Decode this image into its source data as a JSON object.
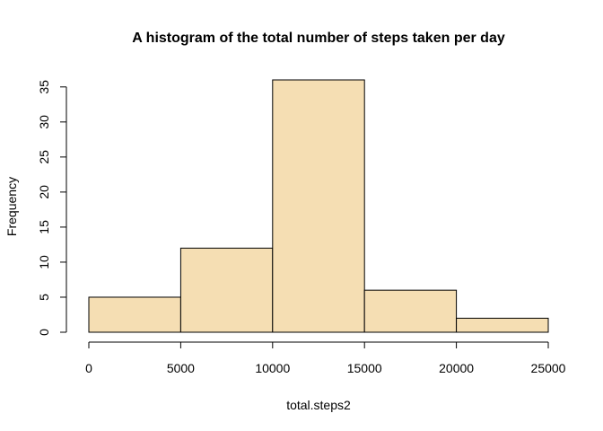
{
  "chart_data": {
    "type": "bar",
    "title": "A histogram of the total number of steps taken per day",
    "xlabel": "total.steps2",
    "ylabel": "Frequency",
    "bins": [
      {
        "start": 0,
        "end": 5000,
        "count": 5
      },
      {
        "start": 5000,
        "end": 10000,
        "count": 12
      },
      {
        "start": 10000,
        "end": 15000,
        "count": 36
      },
      {
        "start": 15000,
        "end": 20000,
        "count": 6
      },
      {
        "start": 20000,
        "end": 25000,
        "count": 2
      }
    ],
    "xlim": [
      0,
      25000
    ],
    "ylim": [
      0,
      36
    ],
    "x_ticks": [
      0,
      5000,
      10000,
      15000,
      20000,
      25000
    ],
    "y_ticks": [
      0,
      5,
      10,
      15,
      20,
      25,
      30,
      35
    ],
    "bar_color": "#F5DEB3",
    "grid": false
  }
}
